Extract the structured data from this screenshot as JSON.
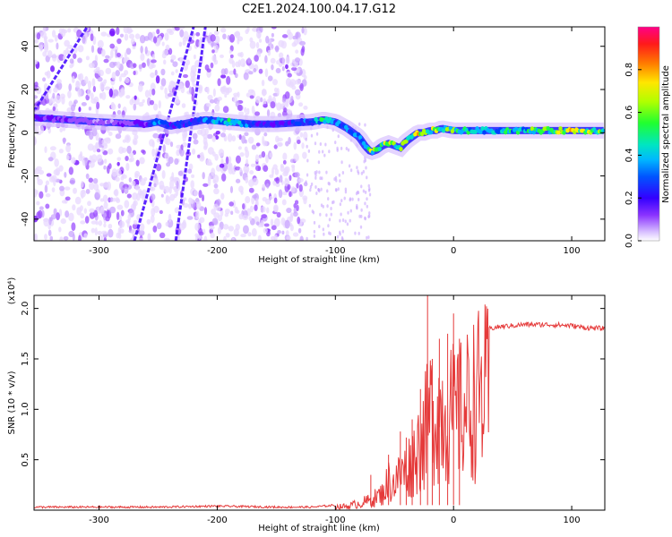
{
  "title": "C2E1.2024.100.04.17.G12",
  "colors": {
    "snr_line": "#e53a3a",
    "axis": "#000000",
    "colormap": [
      "#ffffff",
      "#e8d8ff",
      "#c9a6ff",
      "#9b4dff",
      "#6a00ff",
      "#2a2aff",
      "#0040ff",
      "#00b4ff",
      "#00e0c8",
      "#20ff40",
      "#aaff00",
      "#ffee00",
      "#ff8800",
      "#ff2020",
      "#ff0080"
    ]
  },
  "chart_data": [
    {
      "type": "heatmap",
      "name": "spectrogram",
      "xlabel": "Height of straight line (km)",
      "ylabel": "Frequency (Hz)",
      "xlim": [
        -355,
        128
      ],
      "ylim": [
        -50,
        49
      ],
      "xticks": [
        -300,
        -200,
        -100,
        0,
        100
      ],
      "xtick_labels": [
        "-300",
        "-200",
        "-100",
        "0",
        "100"
      ],
      "yticks": [
        -40,
        -20,
        0,
        20,
        40
      ],
      "ytick_labels": [
        "-40",
        "-20",
        "0",
        "20",
        "40"
      ],
      "colorbar": {
        "label": "Normalized spectral amplitude",
        "range": [
          0,
          1
        ],
        "ticks": [
          0.0,
          0.2,
          0.4,
          0.6,
          0.8
        ],
        "tick_labels": [
          "0.0",
          "0.2",
          "0.4",
          "0.6",
          "0.8"
        ]
      },
      "main_trace": {
        "x": [
          -355,
          -300,
          -260,
          -250,
          -240,
          -220,
          -210,
          -190,
          -170,
          -150,
          -120,
          -110,
          -100,
          -90,
          -80,
          -75,
          -70,
          -65,
          -60,
          -55,
          -50,
          -45,
          -40,
          -35,
          -30,
          -25,
          -20,
          -15,
          -10,
          0,
          20,
          50,
          80,
          100,
          128
        ],
        "y": [
          7,
          5,
          4,
          5,
          3,
          5,
          6,
          5,
          4,
          4,
          5,
          6,
          5,
          2,
          -2,
          -6,
          -9,
          -8,
          -6,
          -5,
          -6,
          -7,
          -4,
          -2,
          0,
          0,
          1,
          1,
          2,
          1,
          1,
          1,
          1,
          1,
          1
        ],
        "amplitude": [
          0.3,
          0.2,
          0.3,
          0.5,
          0.4,
          0.4,
          0.5,
          0.6,
          0.4,
          0.3,
          0.5,
          0.6,
          0.5,
          0.5,
          0.5,
          0.6,
          0.7,
          0.6,
          0.7,
          0.8,
          0.7,
          0.7,
          0.7,
          0.7,
          0.8,
          0.8,
          0.7,
          0.8,
          0.6,
          0.7,
          0.6,
          0.6,
          0.7,
          0.8,
          0.6
        ]
      },
      "diagonal_streaks": [
        {
          "x": [
            -270,
            -220
          ],
          "y": [
            -50,
            49
          ]
        },
        {
          "x": [
            -235,
            -210
          ],
          "y": [
            -50,
            49
          ]
        },
        {
          "x": [
            -355,
            -310
          ],
          "y": [
            10,
            49
          ]
        }
      ],
      "noise_region": {
        "x": [
          -355,
          -125
        ]
      }
    },
    {
      "type": "line",
      "name": "snr",
      "xlabel": "Height of straight line (km)",
      "ylabel": "SNR (10 * v/v)",
      "y_multiplier": "(x10⁴)",
      "xlim": [
        -355,
        128
      ],
      "ylim": [
        0,
        2.13
      ],
      "xticks": [
        -300,
        -200,
        -100,
        0,
        100
      ],
      "xtick_labels": [
        "-300",
        "-200",
        "-100",
        "0",
        "100"
      ],
      "yticks": [
        0.5,
        1.0,
        1.5,
        2.0
      ],
      "ytick_labels": [
        "0.5",
        "1.0",
        "1.5",
        "2.0"
      ],
      "x": [
        -355,
        -300,
        -250,
        -200,
        -150,
        -120,
        -100,
        -90,
        -80,
        -70,
        -60,
        -55,
        -50,
        -45,
        -40,
        -35,
        -30,
        -25,
        -20,
        -18,
        -15,
        -10,
        -5,
        0,
        5,
        10,
        15,
        20,
        25,
        30,
        40,
        60,
        80,
        100,
        110,
        128
      ],
      "y": [
        0.03,
        0.03,
        0.03,
        0.04,
        0.03,
        0.03,
        0.05,
        0.06,
        0.1,
        0.15,
        0.25,
        0.45,
        0.4,
        0.55,
        0.6,
        0.75,
        0.95,
        1.15,
        1.4,
        1.55,
        1.5,
        1.5,
        1.45,
        1.45,
        1.45,
        1.55,
        1.65,
        1.75,
        1.78,
        1.8,
        1.82,
        1.84,
        1.84,
        1.83,
        1.81,
        1.8
      ],
      "spikes": [
        {
          "x": -70,
          "y": 0.35
        },
        {
          "x": -55,
          "y": 0.55
        },
        {
          "x": -45,
          "y": 0.78
        },
        {
          "x": -40,
          "y": 0.72
        },
        {
          "x": -35,
          "y": 0.9
        },
        {
          "x": -28,
          "y": 1.2
        },
        {
          "x": -22,
          "y": 2.13
        },
        {
          "x": -18,
          "y": 1.5
        },
        {
          "x": -12,
          "y": 1.7
        },
        {
          "x": -5,
          "y": 1.75
        },
        {
          "x": 0,
          "y": 1.95
        },
        {
          "x": 5,
          "y": 1.7
        }
      ]
    }
  ]
}
